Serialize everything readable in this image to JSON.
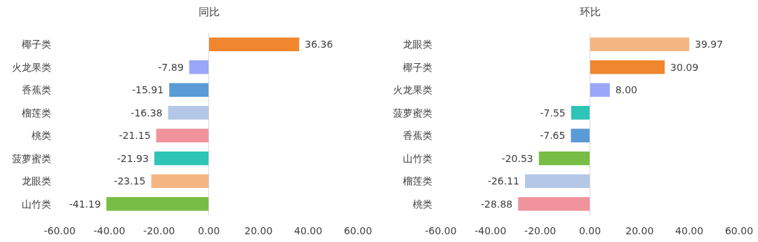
{
  "chart_data": [
    {
      "type": "bar",
      "orientation": "horizontal",
      "title": "同比",
      "categories": [
        "椰子类",
        "火龙果类",
        "香蕉类",
        "榴莲类",
        "桃类",
        "菠萝蜜类",
        "龙眼类",
        "山竹类"
      ],
      "values": [
        36.36,
        -7.89,
        -15.91,
        -16.38,
        -21.15,
        -21.93,
        -23.15,
        -41.19
      ],
      "colors": [
        "#f0862e",
        "#9aa6f8",
        "#5b9bd5",
        "#b4c7e7",
        "#f0939d",
        "#2ec4b6",
        "#f5b583",
        "#78bd45"
      ],
      "value_labels": [
        "36.36",
        "-7.89",
        "-15.91",
        "-16.38",
        "-21.15",
        "-21.93",
        "-23.15",
        "-41.19"
      ],
      "xlim": [
        -60,
        60
      ],
      "xticks": [
        {
          "value": -60,
          "label": "-60.00"
        },
        {
          "value": -40,
          "label": "-40.00"
        },
        {
          "value": -20,
          "label": "-20.00"
        },
        {
          "value": 0,
          "label": "0.00"
        },
        {
          "value": 20,
          "label": "20.00"
        },
        {
          "value": 40,
          "label": "40.00"
        },
        {
          "value": 60,
          "label": "60.00"
        }
      ]
    },
    {
      "type": "bar",
      "orientation": "horizontal",
      "title": "环比",
      "categories": [
        "龙眼类",
        "椰子类",
        "火龙果类",
        "菠萝蜜类",
        "香蕉类",
        "山竹类",
        "榴莲类",
        "桃类"
      ],
      "values": [
        39.97,
        30.09,
        8.0,
        -7.55,
        -7.65,
        -20.53,
        -26.11,
        -28.88
      ],
      "colors": [
        "#f5b583",
        "#f0862e",
        "#9aa6f8",
        "#2ec4b6",
        "#5b9bd5",
        "#78bd45",
        "#b4c7e7",
        "#f0939d"
      ],
      "value_labels": [
        "39.97",
        "30.09",
        "8.00",
        "-7.55",
        "-7.65",
        "-20.53",
        "-26.11",
        "-28.88"
      ],
      "xlim": [
        -60,
        60
      ],
      "xticks": [
        {
          "value": -60,
          "label": "-60.00"
        },
        {
          "value": -40,
          "label": "-40.00"
        },
        {
          "value": -20,
          "label": "-20.00"
        },
        {
          "value": 0,
          "label": "0.00"
        },
        {
          "value": 20,
          "label": "20.00"
        },
        {
          "value": 40,
          "label": "40.00"
        },
        {
          "value": 60,
          "label": "60.00"
        }
      ]
    }
  ]
}
